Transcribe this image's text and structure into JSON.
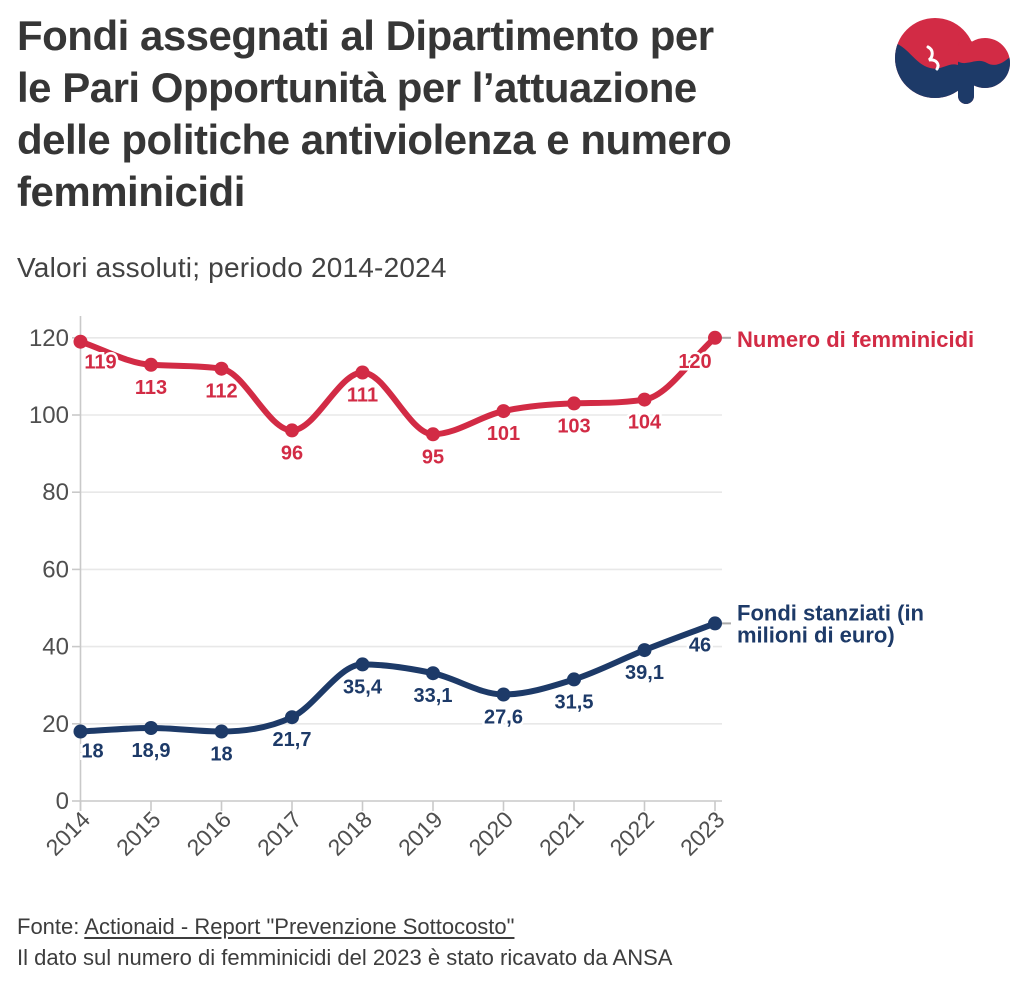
{
  "header": {
    "title_lines": [
      "Fondi assegnati al Dipartimento per",
      "le Pari Opportunità per l’attuazione",
      "delle politiche antiviolenza e numero",
      "femminicidi"
    ],
    "subtitle": "Valori assoluti; periodo 2014-2024"
  },
  "chart_data": {
    "type": "line",
    "title": "Fondi assegnati al Dipartimento per le Pari Opportunità per l’attuazione delle politiche antiviolenza e numero femminicidi",
    "subtitle": "Valori assoluti; periodo 2014-2024",
    "categories": [
      "2014",
      "2015",
      "2016",
      "2017",
      "2018",
      "2019",
      "2020",
      "2021",
      "2022",
      "2023"
    ],
    "series": [
      {
        "name": "Numero di femminicidi",
        "color": "#d22b45",
        "values": [
          119,
          113,
          112,
          96,
          111,
          95,
          101,
          103,
          104,
          120
        ],
        "labels": [
          "119",
          "113",
          "112",
          "96",
          "111",
          "95",
          "101",
          "103",
          "104",
          "120"
        ]
      },
      {
        "name": "Fondi stanziati (in milioni di euro)",
        "color": "#1d3a68",
        "values": [
          18,
          18.9,
          18,
          21.7,
          35.4,
          33.1,
          27.6,
          31.5,
          39.1,
          46
        ],
        "labels": [
          "18",
          "18,9",
          "18",
          "21,7",
          "35,4",
          "33,1",
          "27,6",
          "31,5",
          "39,1",
          "46"
        ]
      }
    ],
    "ylim": [
      0,
      120
    ],
    "yticks": [
      0,
      20,
      40,
      60,
      80,
      100,
      120
    ],
    "grid": true,
    "xlabel": "",
    "ylabel": "",
    "legend_position": "right-of-line-end"
  },
  "legend": {
    "red": "Numero di femminicidi",
    "blue_lines": [
      "Fondi stanziati (in",
      "milioni di euro)"
    ]
  },
  "colors": {
    "red": "#d22b45",
    "blue": "#1d3a68",
    "grid": "#e8e8e8",
    "axis": "#c9c9c9",
    "tick_label": "#4f4f4f"
  },
  "footer": {
    "source_prefix": "Fonte: ",
    "source_link": "Actionaid - Report \"Prevenzione Sottocosto\"",
    "note": "Il dato sul numero di femminicidi del 2023 è stato ricavato da ANSA"
  }
}
